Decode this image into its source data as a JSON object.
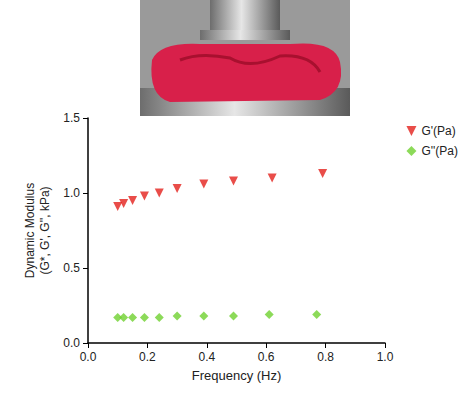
{
  "chart_data": {
    "type": "scatter",
    "xlabel": "Frequency (Hz)",
    "ylabel": "Dynamic Modulus\n(G*, G', G'', kPa)",
    "xlim": [
      0,
      1.0
    ],
    "xticks": [
      {
        "value": 0,
        "label": "0.0"
      },
      0.2,
      0.4,
      0.6,
      0.8,
      {
        "value": 1.0,
        "label": "1.0"
      }
    ],
    "ylim": [
      0,
      1.5
    ],
    "yticks": [
      {
        "value": 0,
        "label": "0.0"
      },
      0.5,
      {
        "value": 1.0,
        "label": "1.0"
      },
      1.5
    ],
    "grid": false,
    "legend": "right",
    "series": [
      {
        "name": "G'(Pa)",
        "color": "#e3211c",
        "marker": "triangle-down",
        "x": [
          0.1,
          0.12,
          0.15,
          0.19,
          0.24,
          0.3,
          0.39,
          0.49,
          0.62,
          0.79
        ],
        "values": [
          0.91,
          0.93,
          0.95,
          0.98,
          1.0,
          1.03,
          1.06,
          1.08,
          1.1,
          1.13
        ]
      },
      {
        "name": "G''(Pa)",
        "color": "#6fd12f",
        "marker": "diamond",
        "x": [
          0.1,
          0.12,
          0.15,
          0.19,
          0.24,
          0.3,
          0.39,
          0.49,
          0.61,
          0.77
        ],
        "values": [
          0.17,
          0.17,
          0.17,
          0.17,
          0.17,
          0.18,
          0.18,
          0.18,
          0.19,
          0.19
        ]
      }
    ]
  }
}
